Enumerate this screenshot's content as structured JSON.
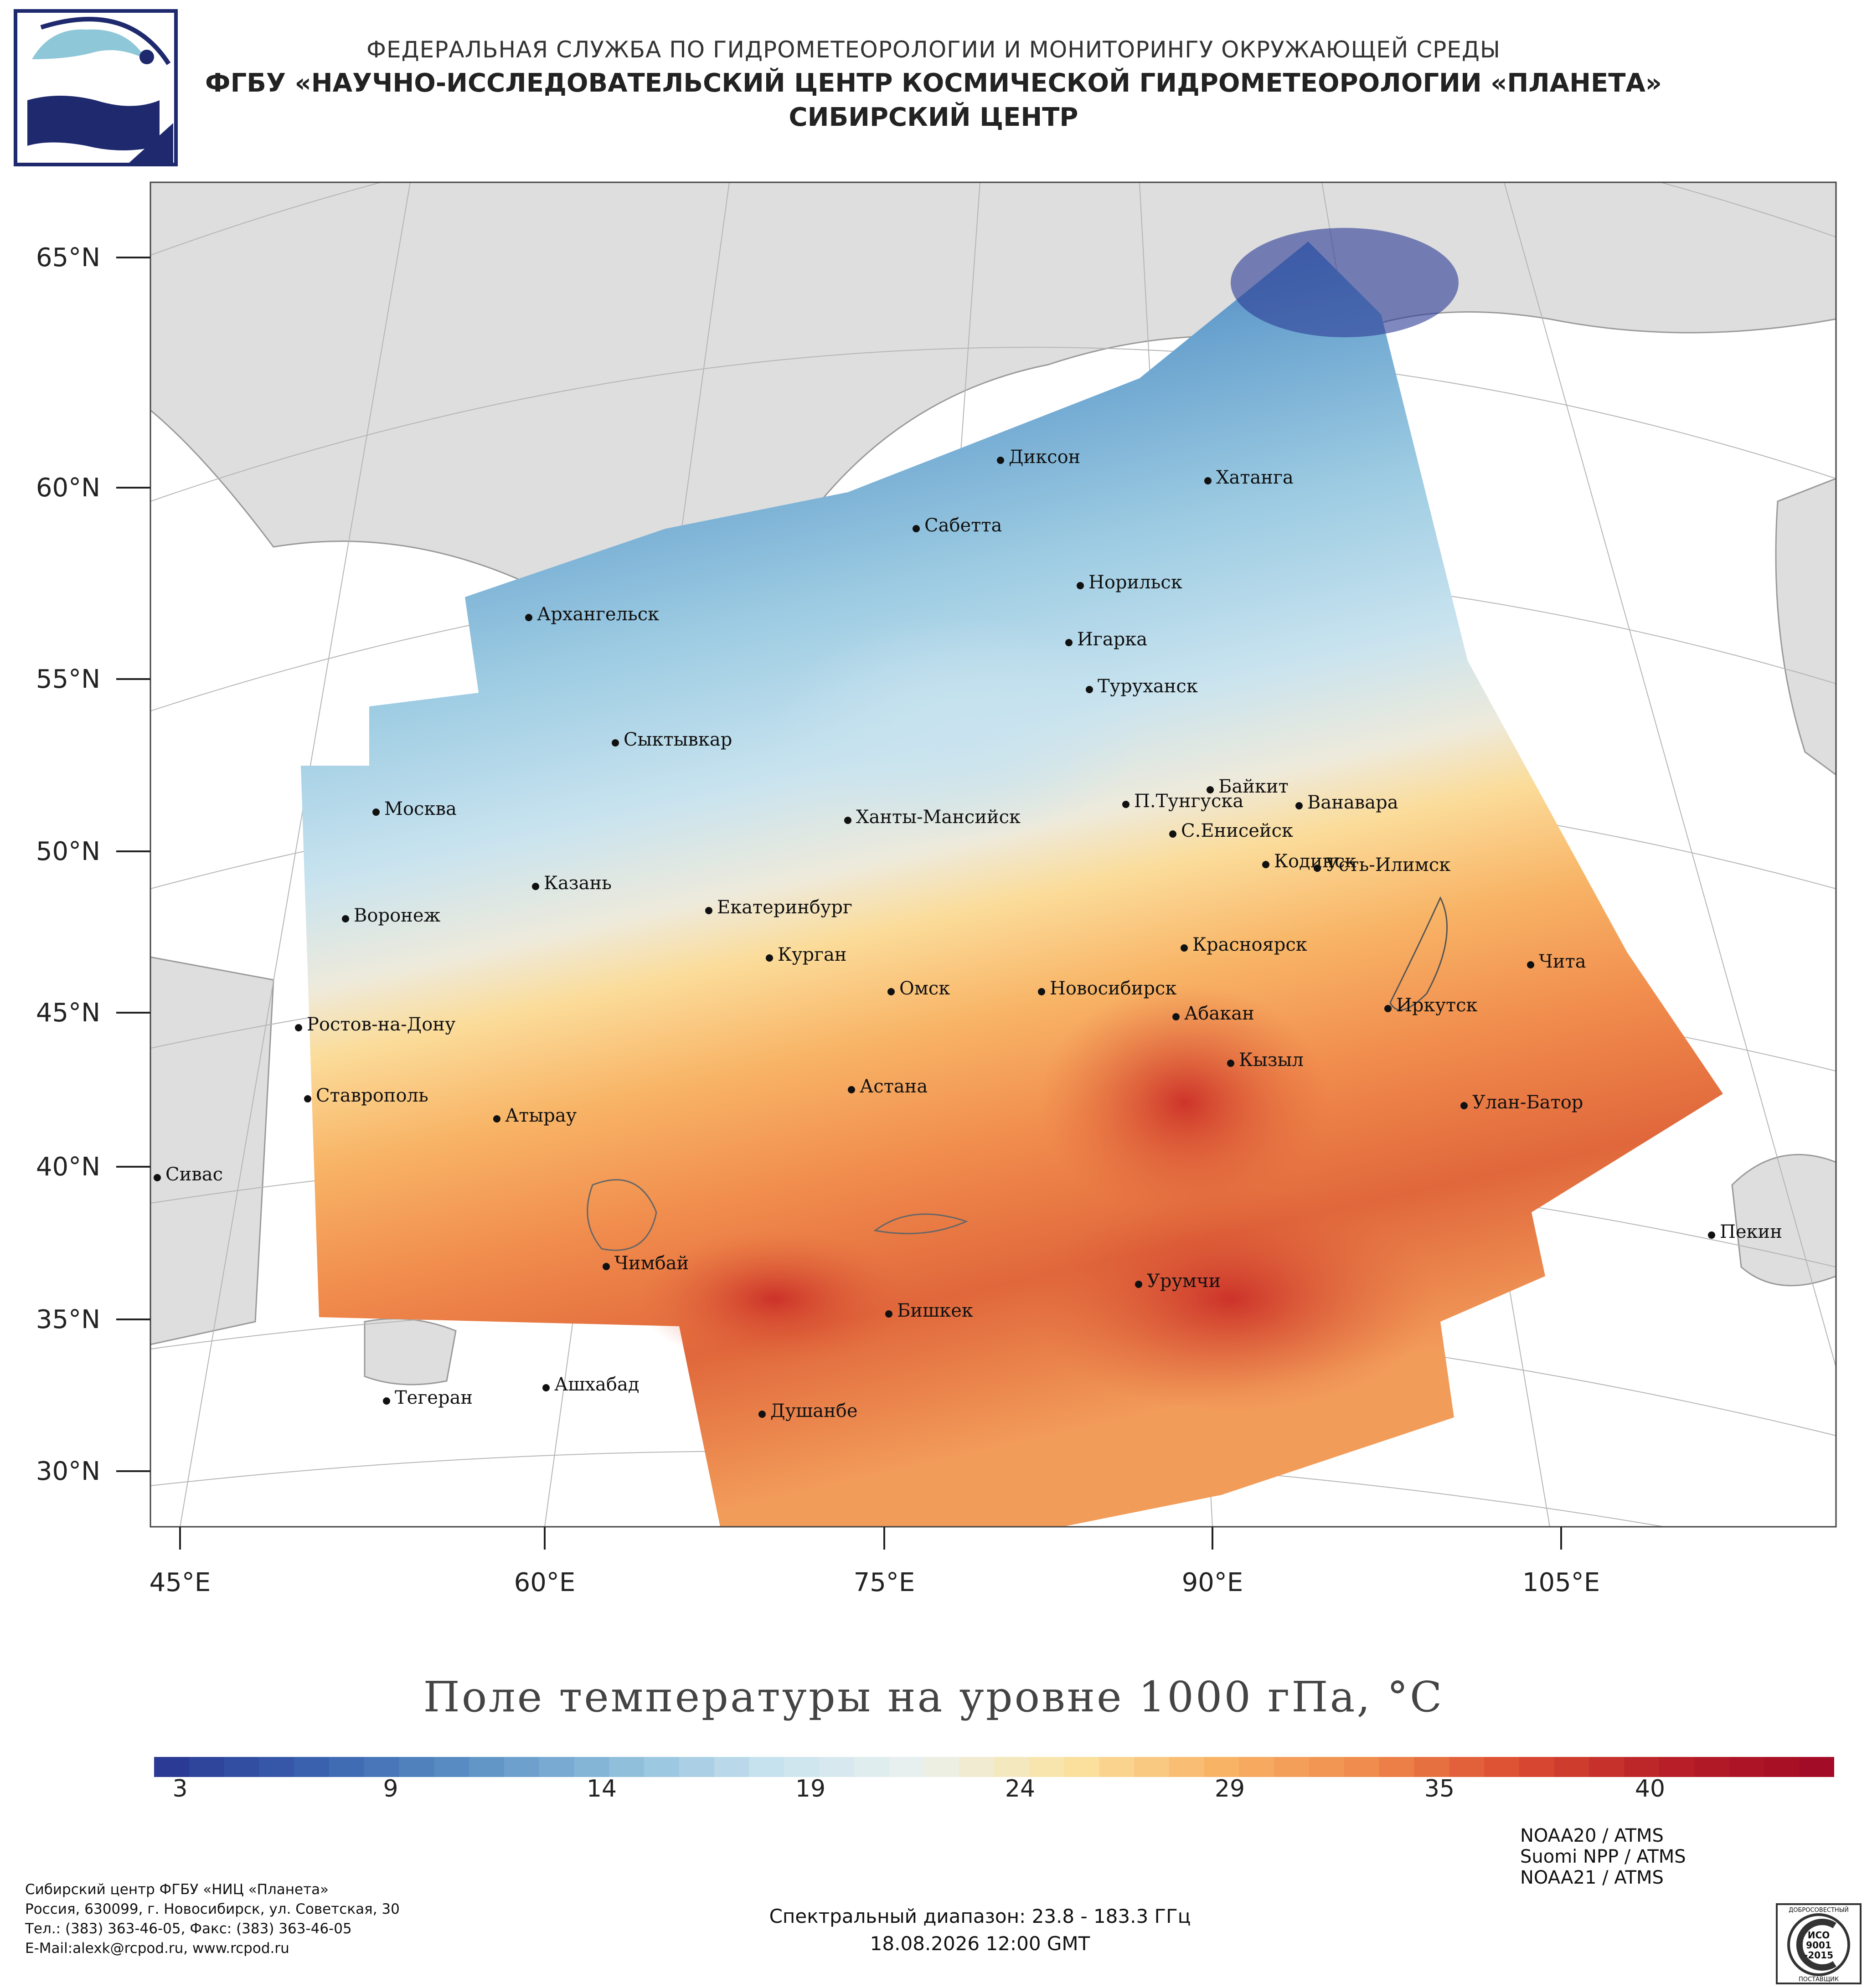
{
  "header": {
    "line1": "ФЕДЕРАЛЬНАЯ СЛУЖБА ПО ГИДРОМЕТЕОРОЛОГИИ И МОНИТОРИНГУ ОКРУЖАЮЩЕЙ СРЕДЫ",
    "line2": "ФГБУ «НАУЧНО-ИССЛЕДОВАТЕЛЬСКИЙ ЦЕНТР КОСМИЧЕСКОЙ ГИДРОМЕТЕОРОЛОГИИ «ПЛАНЕТА»",
    "line3": "СИБИРСКИЙ ЦЕНТР"
  },
  "map": {
    "title": "Поле температуры на уровне 1000 гПа, °С",
    "lat_labels": [
      "65°N",
      "60°N",
      "55°N",
      "50°N",
      "45°N",
      "40°N",
      "35°N",
      "30°N"
    ],
    "lon_labels": [
      "45°E",
      "60°E",
      "75°E",
      "90°E",
      "105°E"
    ],
    "cities": [
      {
        "name": "Диксон"
      },
      {
        "name": "Хатанга"
      },
      {
        "name": "Сабетта"
      },
      {
        "name": "Норильск"
      },
      {
        "name": "Архангельск"
      },
      {
        "name": "Игарка"
      },
      {
        "name": "Туруханск"
      },
      {
        "name": "Сыктывкар"
      },
      {
        "name": "Байкит"
      },
      {
        "name": "Москва"
      },
      {
        "name": "Ханты-Мансийск"
      },
      {
        "name": "П.Тунгуска"
      },
      {
        "name": "Ванавара"
      },
      {
        "name": "С.Енисейск"
      },
      {
        "name": "Казань"
      },
      {
        "name": "Кодинск"
      },
      {
        "name": "Усть-Илимск"
      },
      {
        "name": "Воронеж"
      },
      {
        "name": "Екатеринбург"
      },
      {
        "name": "Красноярск"
      },
      {
        "name": "Курган"
      },
      {
        "name": "Чита"
      },
      {
        "name": "Омск"
      },
      {
        "name": "Новосибирск"
      },
      {
        "name": "Иркутск"
      },
      {
        "name": "Ростов-на-Дону"
      },
      {
        "name": "Абакан"
      },
      {
        "name": "Кызыл"
      },
      {
        "name": "Ставрополь"
      },
      {
        "name": "Астана"
      },
      {
        "name": "Улан-Батор"
      },
      {
        "name": "Атырау"
      },
      {
        "name": "Сивас"
      },
      {
        "name": "Пекин"
      },
      {
        "name": "Чимбай"
      },
      {
        "name": "Урумчи"
      },
      {
        "name": "Бишкек"
      },
      {
        "name": "Ашхабад"
      },
      {
        "name": "Тегеран"
      },
      {
        "name": "Душанбе"
      }
    ]
  },
  "colorbar": {
    "ticks": [
      "3",
      "9",
      "14",
      "19",
      "24",
      "29",
      "35",
      "40"
    ],
    "colors": [
      "#2b3a94",
      "#3a64b0",
      "#5c91c5",
      "#8dbddb",
      "#c8e3ef",
      "#eaf1ee",
      "#fbe3a2",
      "#f8b466",
      "#f08a4c",
      "#db4c31",
      "#b81f28",
      "#a30c26"
    ]
  },
  "footer": {
    "org": "Сибирский центр ФГБУ «НИЦ «Планета»",
    "address": "Россия, 630099, г. Новосибирск, ул. Советская, 30",
    "phones": "Тел.: (383) 363-46-05, Факс: (383) 363-46-05",
    "email": "E-Mail:alexk@rcpod.ru, www.rcpod.ru",
    "spectral": "Спектральный диапазон: 23.8 - 183.3 ГГц",
    "datetime": "18.08.2026 12:00 GMT",
    "satellites": [
      "NOAA20 / ATMS",
      "Suomi NPP / ATMS",
      "NOAA21 / ATMS"
    ],
    "iso_text": "ИСО 9001 -2015",
    "iso_ring_top": "ДОБРОСОВЕСТНЫЙ",
    "iso_ring_bottom": "ПОСТАВЩИК"
  }
}
